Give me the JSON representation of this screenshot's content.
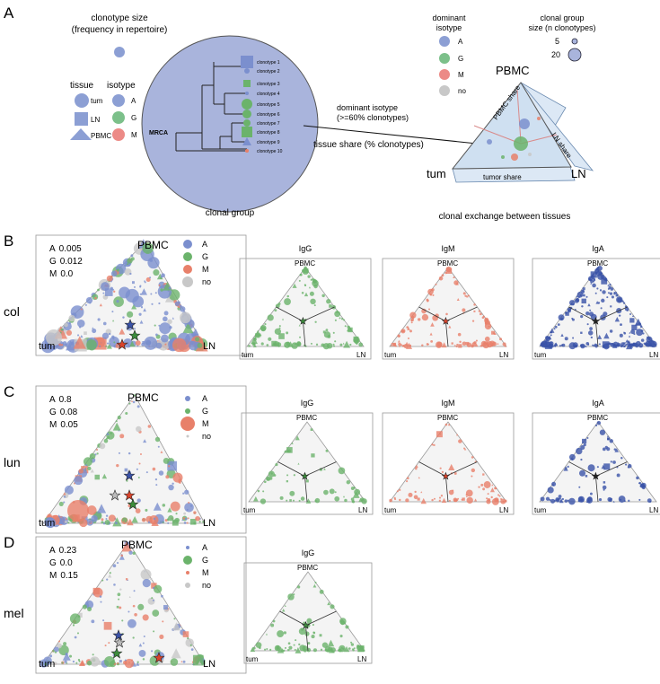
{
  "colors": {
    "A": "#7b8fce",
    "G": "#6bb36b",
    "M": "#e8806a",
    "no": "#c8c8c8",
    "A_dark": "#3a52a8",
    "G_dark": "#3c8c3c",
    "M_dark": "#d9432b",
    "circle_fill": "#a9b4dc",
    "tri_fill": "#f4f4f4",
    "ternary_bg": "#dce8f5"
  },
  "icons": [
    "star-icon",
    "circle-icon",
    "square-icon",
    "triangle-icon"
  ],
  "panelA": {
    "label": "A",
    "size_title_1": "clonotype size",
    "size_title_2": "(frequency in repertoire)",
    "tissue_header": "tissue",
    "isotype_header": "isotype",
    "tissues": [
      "tum",
      "LN",
      "PBMC"
    ],
    "isotypes": [
      "A",
      "G",
      "M"
    ],
    "mrca": "MRCA",
    "clonotypes": [
      "clonotype 1",
      "clonotype 2",
      "clonotype 3",
      "clonotype 4",
      "clonotype 5",
      "clonotype 6",
      "clonotype 7",
      "clonotype 8",
      "clonotype 9",
      "clonotype 10"
    ],
    "clonal_group_caption": "clonal group",
    "dominant_isotype_title_1": "dominant",
    "dominant_isotype_title_2": "isotype",
    "dominant_isotypes": [
      "A",
      "G",
      "M",
      "no"
    ],
    "group_size_title_1": "clonal group",
    "group_size_title_2": "size (n clonotypes)",
    "group_sizes": [
      "5",
      "20"
    ],
    "arrow_label_1": "dominant isotype",
    "arrow_label_2": "(>=60% clonotypes)",
    "tissue_share_label": "tissue share (% clonotypes)",
    "pbmc_share": "PBMC share",
    "ln_share": "LN share",
    "tumor_share": "tumor share",
    "corner_pbmc": "PBMC",
    "corner_tum": "tum",
    "corner_ln": "LN",
    "exchange_caption": "clonal exchange between tissues"
  },
  "rows": [
    {
      "label": "B",
      "tissue": "col",
      "stats": [
        {
          "iso": "A",
          "value": "0.005"
        },
        {
          "iso": "G",
          "value": "0.012"
        },
        {
          "iso": "M",
          "value": "0.0"
        }
      ],
      "legend": [
        "A",
        "G",
        "M",
        "no"
      ],
      "subplots": [
        "IgG",
        "IgM",
        "IgA"
      ]
    },
    {
      "label": "C",
      "tissue": "lun",
      "stats": [
        {
          "iso": "A",
          "value": "0.8"
        },
        {
          "iso": "G",
          "value": "0.08"
        },
        {
          "iso": "M",
          "value": "0.05"
        }
      ],
      "legend": [
        "A",
        "G",
        "M",
        "no"
      ],
      "subplots": [
        "IgG",
        "IgM",
        "IgA"
      ]
    },
    {
      "label": "D",
      "tissue": "mel",
      "stats": [
        {
          "iso": "A",
          "value": "0.23"
        },
        {
          "iso": "G",
          "value": "0.0"
        },
        {
          "iso": "M",
          "value": "0.15"
        }
      ],
      "legend": [
        "A",
        "G",
        "M",
        "no"
      ],
      "subplots": [
        "IgG"
      ]
    }
  ],
  "corner_labels": {
    "top": "PBMC",
    "left": "tum",
    "right": "LN"
  }
}
